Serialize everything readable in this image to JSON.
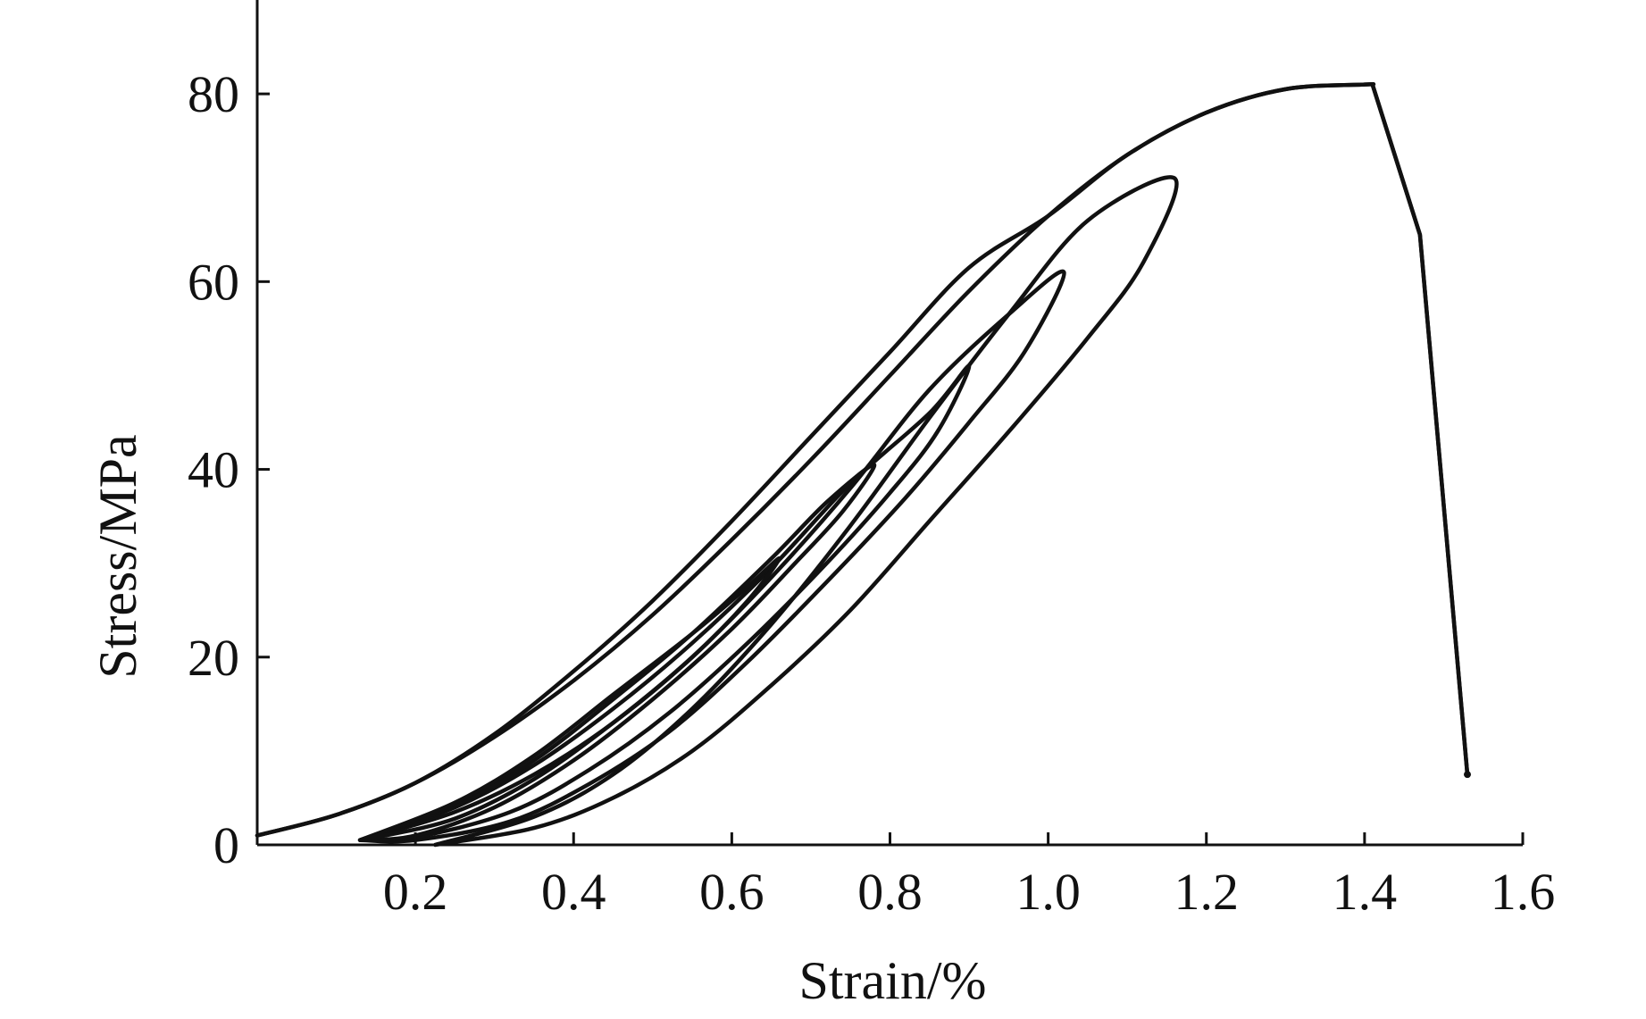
{
  "chart_data": {
    "type": "line",
    "title": "",
    "xlabel": "Strain/%",
    "ylabel": "Stress/MPa",
    "xlim": [
      0,
      1.6
    ],
    "ylim": [
      0,
      90
    ],
    "xticks": [
      0.2,
      0.4,
      0.6,
      0.8,
      1.0,
      1.2,
      1.4,
      1.6
    ],
    "xtick_labels": [
      "0.2",
      "0.4",
      "0.6",
      "0.8",
      "1.0",
      "1.2",
      "1.4",
      "1.6"
    ],
    "yticks": [
      0,
      20,
      40,
      60,
      80
    ],
    "ytick_labels": [
      "0",
      "20",
      "40",
      "60",
      "80"
    ],
    "grid": false,
    "legend": "none",
    "colors": {
      "line": "#111111"
    },
    "series": [
      {
        "values_note_free": true,
        "points": [
          [
            0.0,
            1.0
          ],
          [
            0.1,
            3.2
          ],
          [
            0.2,
            6.6
          ],
          [
            0.3,
            11.5
          ],
          [
            0.4,
            17.5
          ],
          [
            0.5,
            24.5
          ],
          [
            0.6,
            32.5
          ],
          [
            0.7,
            41.0
          ],
          [
            0.8,
            50.0
          ],
          [
            0.9,
            59.0
          ],
          [
            1.0,
            67.0
          ],
          [
            1.1,
            73.5
          ],
          [
            1.2,
            78.0
          ],
          [
            1.3,
            80.5
          ],
          [
            1.4,
            81.0
          ],
          [
            1.41,
            81.0
          ],
          [
            1.47,
            65.0
          ],
          [
            1.53,
            7.5
          ]
        ]
      },
      {
        "points": [
          [
            0.0,
            1.0
          ],
          [
            0.1,
            3.2
          ],
          [
            0.2,
            6.6
          ],
          [
            0.3,
            11.8
          ],
          [
            0.4,
            18.5
          ],
          [
            0.5,
            26.0
          ],
          [
            0.6,
            34.5
          ],
          [
            0.7,
            43.5
          ],
          [
            0.8,
            52.5
          ],
          [
            0.9,
            61.5
          ],
          [
            1.0,
            67.0
          ],
          [
            1.1,
            73.5
          ],
          [
            1.2,
            78.0
          ],
          [
            1.3,
            80.5
          ],
          [
            1.4,
            81.0
          ],
          [
            1.41,
            81.0
          ],
          [
            1.47,
            65.0
          ],
          [
            1.53,
            7.5
          ]
        ]
      },
      {
        "points": [
          [
            0.225,
            0.0
          ],
          [
            0.35,
            3.0
          ],
          [
            0.45,
            7.5
          ],
          [
            0.55,
            14.5
          ],
          [
            0.65,
            23.5
          ],
          [
            0.75,
            34.0
          ],
          [
            0.85,
            45.5
          ],
          [
            0.95,
            56.5
          ],
          [
            1.05,
            66.5
          ],
          [
            1.16,
            71.0
          ],
          [
            1.12,
            62.0
          ],
          [
            1.05,
            54.0
          ],
          [
            0.95,
            44.0
          ],
          [
            0.85,
            34.5
          ],
          [
            0.75,
            25.0
          ],
          [
            0.65,
            17.0
          ],
          [
            0.55,
            10.0
          ],
          [
            0.45,
            5.0
          ],
          [
            0.35,
            1.8
          ],
          [
            0.225,
            0.0
          ]
        ]
      },
      {
        "points": [
          [
            0.13,
            0.5
          ],
          [
            0.25,
            3.5
          ],
          [
            0.35,
            7.5
          ],
          [
            0.45,
            13.0
          ],
          [
            0.55,
            20.0
          ],
          [
            0.65,
            28.5
          ],
          [
            0.75,
            38.0
          ],
          [
            0.85,
            48.5
          ],
          [
            0.95,
            56.5
          ],
          [
            1.02,
            61.0
          ],
          [
            0.97,
            52.5
          ],
          [
            0.9,
            45.0
          ],
          [
            0.82,
            37.0
          ],
          [
            0.72,
            28.0
          ],
          [
            0.62,
            19.5
          ],
          [
            0.52,
            12.0
          ],
          [
            0.42,
            6.5
          ],
          [
            0.32,
            2.5
          ],
          [
            0.2,
            0.5
          ],
          [
            0.13,
            0.5
          ]
        ]
      },
      {
        "points": [
          [
            0.13,
            0.5
          ],
          [
            0.25,
            4.0
          ],
          [
            0.35,
            8.5
          ],
          [
            0.45,
            14.5
          ],
          [
            0.55,
            21.5
          ],
          [
            0.65,
            29.5
          ],
          [
            0.75,
            38.5
          ],
          [
            0.85,
            46.0
          ],
          [
            0.9,
            51.0
          ],
          [
            0.86,
            44.0
          ],
          [
            0.8,
            37.5
          ],
          [
            0.72,
            30.0
          ],
          [
            0.62,
            21.5
          ],
          [
            0.52,
            14.0
          ],
          [
            0.42,
            8.0
          ],
          [
            0.32,
            3.5
          ],
          [
            0.2,
            0.8
          ],
          [
            0.13,
            0.5
          ]
        ]
      },
      {
        "points": [
          [
            0.13,
            0.5
          ],
          [
            0.25,
            4.2
          ],
          [
            0.35,
            9.0
          ],
          [
            0.45,
            15.5
          ],
          [
            0.55,
            22.5
          ],
          [
            0.65,
            30.5
          ],
          [
            0.72,
            36.5
          ],
          [
            0.78,
            40.5
          ],
          [
            0.74,
            35.5
          ],
          [
            0.68,
            30.0
          ],
          [
            0.6,
            23.0
          ],
          [
            0.5,
            15.5
          ],
          [
            0.4,
            9.0
          ],
          [
            0.3,
            4.0
          ],
          [
            0.2,
            1.0
          ],
          [
            0.13,
            0.5
          ]
        ]
      },
      {
        "points": [
          [
            0.13,
            0.5
          ],
          [
            0.25,
            4.5
          ],
          [
            0.35,
            9.5
          ],
          [
            0.45,
            16.0
          ],
          [
            0.55,
            22.5
          ],
          [
            0.62,
            27.5
          ],
          [
            0.66,
            30.5
          ],
          [
            0.62,
            26.0
          ],
          [
            0.55,
            20.0
          ],
          [
            0.45,
            13.0
          ],
          [
            0.35,
            7.0
          ],
          [
            0.25,
            2.8
          ],
          [
            0.15,
            0.8
          ],
          [
            0.13,
            0.5
          ]
        ]
      }
    ]
  }
}
